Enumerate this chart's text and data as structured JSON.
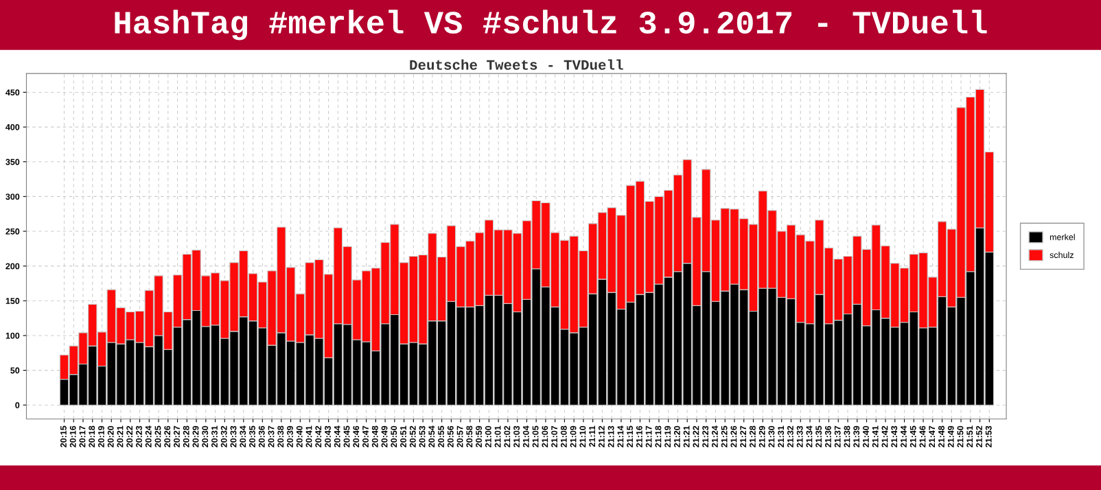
{
  "chart_data": {
    "type": "bar",
    "title": "HashTag #merkel VS #schulz 3.9.2017 - TVDuell",
    "subtitle": "Deutsche Tweets - TVDuell",
    "categories": [
      "20:15",
      "20:16",
      "20:17",
      "20:18",
      "20:19",
      "20:20",
      "20:21",
      "20:22",
      "20:23",
      "20:24",
      "20:25",
      "20:26",
      "20:27",
      "20:28",
      "20:29",
      "20:30",
      "20:31",
      "20:32",
      "20:33",
      "20:34",
      "20:35",
      "20:36",
      "20:37",
      "20:38",
      "20:39",
      "20:40",
      "20:41",
      "20:42",
      "20:43",
      "20:44",
      "20:45",
      "20:46",
      "20:47",
      "20:48",
      "20:49",
      "20:50",
      "20:51",
      "20:52",
      "20:53",
      "20:54",
      "20:55",
      "20:56",
      "20:57",
      "20:58",
      "20:59",
      "21:00",
      "21:01",
      "21:02",
      "21:03",
      "21:04",
      "21:05",
      "21:06",
      "21:07",
      "21:08",
      "21:09",
      "21:10",
      "21:11",
      "21:12",
      "21:13",
      "21:14",
      "21:15",
      "21:16",
      "21:17",
      "21:18",
      "21:19",
      "21:20",
      "21:21",
      "21:22",
      "21:23",
      "21:24",
      "21:25",
      "21:26",
      "21:27",
      "21:28",
      "21:29",
      "21:30",
      "21:31",
      "21:32",
      "21:33",
      "21:34",
      "21:35",
      "21:36",
      "21:37",
      "21:38",
      "21:39",
      "21:40",
      "21:41",
      "21:42",
      "21:43",
      "21:44",
      "21:45",
      "21:46",
      "21:47",
      "21:48",
      "21:49",
      "21:50",
      "21:51",
      "21:52",
      "21:53"
    ],
    "stacked": true,
    "series": [
      {
        "name": "merkel",
        "color": "#000000",
        "values": [
          37,
          44,
          59,
          85,
          56,
          90,
          88,
          94,
          90,
          84,
          100,
          80,
          112,
          123,
          136,
          113,
          115,
          96,
          106,
          127,
          121,
          111,
          86,
          104,
          92,
          90,
          101,
          96,
          68,
          117,
          116,
          94,
          91,
          78,
          117,
          130,
          88,
          90,
          88,
          121,
          121,
          149,
          141,
          141,
          143,
          158,
          158,
          146,
          134,
          152,
          196,
          170,
          141,
          109,
          104,
          112,
          160,
          181,
          162,
          138,
          148,
          159,
          162,
          174,
          184,
          192,
          204,
          143,
          192,
          149,
          164,
          174,
          166,
          135,
          168,
          168,
          155,
          153,
          119,
          117,
          159,
          117,
          122,
          131,
          145,
          114,
          137,
          125,
          112,
          119,
          134,
          111,
          112,
          156,
          141,
          155,
          192,
          255,
          220
        ]
      },
      {
        "name": "schulz",
        "color": "#ff0a0a",
        "values": [
          35,
          41,
          45,
          60,
          49,
          76,
          52,
          40,
          45,
          81,
          86,
          54,
          75,
          94,
          87,
          73,
          75,
          83,
          99,
          95,
          68,
          66,
          107,
          152,
          106,
          70,
          104,
          113,
          120,
          138,
          112,
          86,
          102,
          119,
          117,
          130,
          117,
          124,
          128,
          126,
          92,
          109,
          87,
          95,
          105,
          108,
          94,
          106,
          113,
          113,
          98,
          121,
          107,
          128,
          139,
          110,
          101,
          96,
          122,
          135,
          168,
          163,
          131,
          126,
          125,
          139,
          149,
          127,
          147,
          117,
          119,
          108,
          102,
          125,
          140,
          112,
          95,
          106,
          126,
          119,
          107,
          109,
          88,
          83,
          98,
          110,
          122,
          104,
          92,
          78,
          83,
          108,
          72,
          108,
          112,
          273,
          251,
          199,
          144
        ]
      }
    ],
    "ylim": [
      -20,
      477
    ],
    "yticks": [
      0,
      50,
      100,
      150,
      200,
      250,
      300,
      350,
      400,
      450
    ],
    "grid": true,
    "legend": "right"
  }
}
